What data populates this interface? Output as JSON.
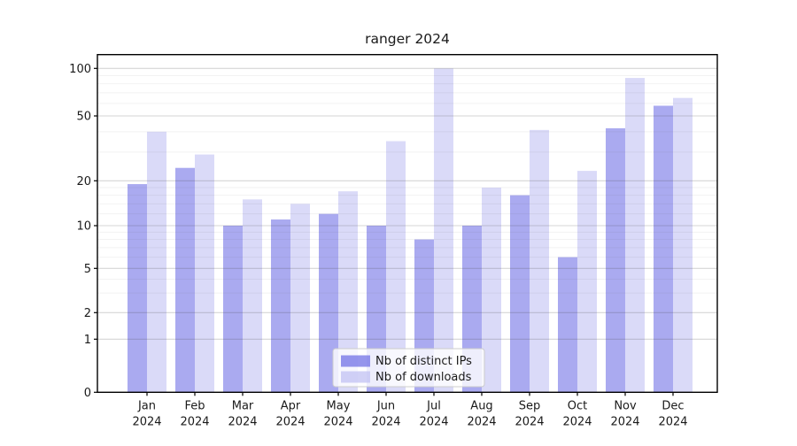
{
  "title": "ranger 2024",
  "y_tick_labels": [
    "0",
    "1",
    "2",
    "5",
    "10",
    "20",
    "50",
    "100"
  ],
  "chart_data": {
    "type": "bar",
    "title": "ranger 2024",
    "categories": [
      "Jan 2024",
      "Feb 2024",
      "Mar 2024",
      "Apr 2024",
      "May 2024",
      "Jun 2024",
      "Jul 2024",
      "Aug 2024",
      "Sep 2024",
      "Oct 2024",
      "Nov 2024",
      "Dec 2024"
    ],
    "series": [
      {
        "name": "Nb of distinct IPs",
        "color": "#7171e6",
        "fill_opacity": 0.6,
        "values": [
          19,
          24,
          10,
          11,
          12,
          10,
          8,
          10,
          16,
          6,
          42,
          58
        ]
      },
      {
        "name": "Nb of downloads",
        "color": "#c1c1f3",
        "fill_opacity": 0.6,
        "values": [
          40,
          29,
          15,
          14,
          17,
          35,
          100,
          18,
          41,
          23,
          87,
          65
        ]
      }
    ],
    "yscale": "symlog",
    "yticks": [
      0,
      1,
      2,
      5,
      10,
      20,
      50,
      100
    ],
    "minor_yticks": [
      3,
      4,
      6,
      7,
      8,
      9,
      12,
      14,
      16,
      18,
      30,
      40,
      60,
      70,
      80,
      90
    ],
    "ylim": [
      0,
      122
    ],
    "grid": "horizontal",
    "legend_position": "lower center"
  }
}
